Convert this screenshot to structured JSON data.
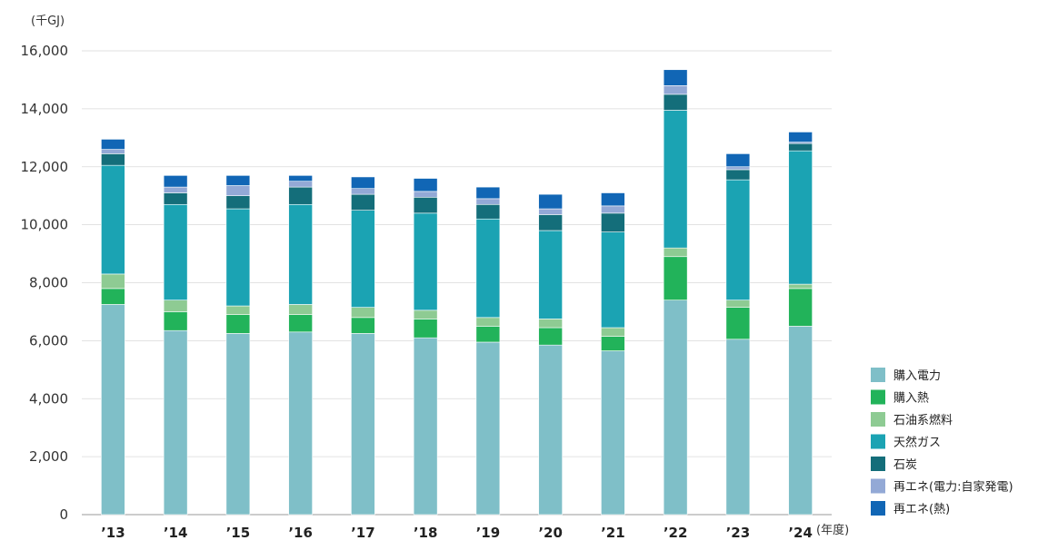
{
  "chart_data": {
    "type": "bar",
    "stacked": true,
    "y_unit_label": "(千GJ)",
    "x_unit_label": "(年度)",
    "categories": [
      "’13",
      "’14",
      "’15",
      "’16",
      "’17",
      "’18",
      "’19",
      "’20",
      "’21",
      "’22",
      "’23",
      "’24"
    ],
    "ylim": [
      0,
      16000
    ],
    "yticks": [
      0,
      2000,
      4000,
      6000,
      8000,
      10000,
      12000,
      14000,
      16000
    ],
    "ytick_labels": [
      "0",
      "2,000",
      "4,000",
      "6,000",
      "8,000",
      "10,000",
      "12,000",
      "14,000",
      "16,000"
    ],
    "grid": true,
    "legend_position": "right",
    "series": [
      {
        "name": "購入電力",
        "color": "#7fbfc8",
        "values": [
          7250,
          6350,
          6250,
          6300,
          6250,
          6100,
          5950,
          5850,
          5650,
          7400,
          6050,
          6500
        ]
      },
      {
        "name": "購入熱",
        "color": "#22b35a",
        "values": [
          550,
          650,
          650,
          600,
          550,
          650,
          550,
          600,
          500,
          1500,
          1100,
          1300
        ]
      },
      {
        "name": "石油系燃料",
        "color": "#8ecb93",
        "values": [
          500,
          400,
          300,
          350,
          350,
          300,
          300,
          300,
          300,
          300,
          250,
          150
        ]
      },
      {
        "name": "天然ガス",
        "color": "#1ba3b3",
        "values": [
          3750,
          3300,
          3350,
          3450,
          3350,
          3350,
          3400,
          3050,
          3300,
          4750,
          4150,
          4600
        ]
      },
      {
        "name": "石炭",
        "color": "#146e7a",
        "values": [
          400,
          400,
          450,
          600,
          550,
          550,
          500,
          550,
          650,
          550,
          350,
          250
        ]
      },
      {
        "name": "再エネ(電力:自家発電)",
        "color": "#93a9d6",
        "values": [
          150,
          200,
          350,
          200,
          200,
          200,
          200,
          200,
          250,
          300,
          100,
          50
        ]
      },
      {
        "name": "再エネ(熱)",
        "color": "#1166b5",
        "values": [
          350,
          400,
          350,
          200,
          400,
          450,
          400,
          500,
          450,
          550,
          450,
          350
        ]
      }
    ]
  }
}
